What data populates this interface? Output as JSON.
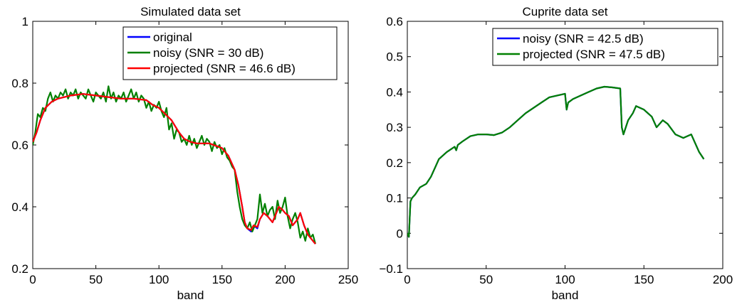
{
  "chart_data": [
    {
      "type": "line",
      "title": "Simulated data set",
      "xlabel": "band",
      "ylabel": "",
      "xlim": [
        0,
        250
      ],
      "ylim": [
        0.2,
        1.0
      ],
      "xticks": [
        0,
        50,
        100,
        150,
        200,
        250
      ],
      "xtick_labels": [
        "0",
        "50",
        "100",
        "150",
        "200",
        "250"
      ],
      "yticks": [
        0.2,
        0.4,
        0.6,
        0.8,
        1.0
      ],
      "ytick_labels": [
        "0.2",
        "0.4",
        "0.6",
        "0.8",
        "1"
      ],
      "grid": false,
      "legend_position": "top-right",
      "series": [
        {
          "name": "original",
          "color": "#0000ff",
          "x": [
            0,
            3,
            6,
            10,
            15,
            20,
            30,
            40,
            50,
            60,
            70,
            80,
            90,
            95,
            100,
            105,
            110,
            113,
            116,
            120,
            125,
            130,
            140,
            150,
            155,
            160,
            163,
            166,
            168,
            170,
            173,
            175,
            178,
            180,
            183,
            186,
            190,
            193,
            195,
            198,
            200,
            203,
            206,
            210,
            212,
            215,
            218,
            220,
            224
          ],
          "y": [
            0.61,
            0.64,
            0.68,
            0.72,
            0.74,
            0.75,
            0.76,
            0.765,
            0.76,
            0.755,
            0.75,
            0.75,
            0.745,
            0.73,
            0.72,
            0.7,
            0.68,
            0.66,
            0.64,
            0.62,
            0.61,
            0.605,
            0.605,
            0.59,
            0.565,
            0.52,
            0.47,
            0.4,
            0.35,
            0.33,
            0.32,
            0.34,
            0.33,
            0.36,
            0.38,
            0.37,
            0.35,
            0.38,
            0.4,
            0.39,
            0.38,
            0.37,
            0.34,
            0.36,
            0.38,
            0.34,
            0.31,
            0.3,
            0.28
          ]
        },
        {
          "name": "noisy (SNR = 30 dB)",
          "color": "#008000",
          "x": [
            0,
            2,
            4,
            6,
            8,
            10,
            12,
            14,
            16,
            18,
            20,
            22,
            24,
            26,
            28,
            30,
            32,
            34,
            36,
            38,
            40,
            42,
            44,
            46,
            48,
            50,
            52,
            54,
            56,
            58,
            60,
            62,
            64,
            66,
            68,
            70,
            72,
            74,
            76,
            78,
            80,
            82,
            84,
            86,
            88,
            90,
            92,
            94,
            96,
            98,
            100,
            102,
            104,
            106,
            108,
            110,
            112,
            114,
            116,
            118,
            120,
            122,
            124,
            126,
            128,
            130,
            132,
            134,
            136,
            138,
            140,
            142,
            144,
            146,
            148,
            150,
            152,
            154,
            156,
            158,
            160,
            162,
            164,
            166,
            168,
            170,
            172,
            174,
            176,
            178,
            180,
            182,
            184,
            186,
            188,
            190,
            192,
            194,
            196,
            198,
            200,
            202,
            204,
            206,
            208,
            210,
            212,
            214,
            216,
            218,
            220,
            222,
            224
          ],
          "y": [
            0.6,
            0.64,
            0.7,
            0.69,
            0.72,
            0.71,
            0.75,
            0.77,
            0.74,
            0.76,
            0.75,
            0.77,
            0.76,
            0.78,
            0.75,
            0.77,
            0.76,
            0.78,
            0.75,
            0.77,
            0.76,
            0.75,
            0.78,
            0.76,
            0.74,
            0.77,
            0.76,
            0.75,
            0.77,
            0.74,
            0.79,
            0.75,
            0.77,
            0.74,
            0.76,
            0.75,
            0.77,
            0.74,
            0.76,
            0.78,
            0.75,
            0.77,
            0.74,
            0.76,
            0.75,
            0.72,
            0.74,
            0.71,
            0.73,
            0.72,
            0.74,
            0.71,
            0.69,
            0.72,
            0.65,
            0.67,
            0.62,
            0.65,
            0.64,
            0.61,
            0.62,
            0.6,
            0.63,
            0.6,
            0.62,
            0.59,
            0.61,
            0.63,
            0.6,
            0.62,
            0.61,
            0.58,
            0.61,
            0.59,
            0.6,
            0.57,
            0.59,
            0.56,
            0.55,
            0.53,
            0.52,
            0.45,
            0.4,
            0.36,
            0.34,
            0.33,
            0.35,
            0.32,
            0.34,
            0.36,
            0.44,
            0.38,
            0.41,
            0.37,
            0.39,
            0.4,
            0.36,
            0.42,
            0.38,
            0.4,
            0.43,
            0.37,
            0.33,
            0.36,
            0.38,
            0.35,
            0.3,
            0.32,
            0.29,
            0.33,
            0.3,
            0.31,
            0.28
          ]
        },
        {
          "name": "projected (SNR = 46.6 dB)",
          "color": "#ff0000",
          "x": [
            0,
            3,
            6,
            10,
            15,
            20,
            30,
            40,
            50,
            60,
            70,
            80,
            90,
            95,
            100,
            105,
            110,
            113,
            116,
            120,
            125,
            130,
            140,
            150,
            155,
            160,
            163,
            166,
            168,
            170,
            173,
            175,
            178,
            180,
            183,
            186,
            190,
            193,
            195,
            198,
            200,
            203,
            206,
            210,
            212,
            215,
            218,
            220,
            224
          ],
          "y": [
            0.61,
            0.64,
            0.68,
            0.72,
            0.74,
            0.75,
            0.76,
            0.765,
            0.76,
            0.755,
            0.75,
            0.75,
            0.745,
            0.73,
            0.72,
            0.7,
            0.68,
            0.66,
            0.64,
            0.62,
            0.61,
            0.605,
            0.605,
            0.59,
            0.565,
            0.52,
            0.47,
            0.4,
            0.35,
            0.33,
            0.325,
            0.34,
            0.335,
            0.36,
            0.38,
            0.37,
            0.35,
            0.38,
            0.4,
            0.39,
            0.38,
            0.37,
            0.34,
            0.36,
            0.38,
            0.34,
            0.31,
            0.3,
            0.28
          ]
        }
      ]
    },
    {
      "type": "line",
      "title": "Cuprite data set",
      "xlabel": "band",
      "ylabel": "",
      "xlim": [
        0,
        200
      ],
      "ylim": [
        -0.1,
        0.6
      ],
      "xticks": [
        0,
        50,
        100,
        150,
        200
      ],
      "xtick_labels": [
        "0",
        "50",
        "100",
        "150",
        "200"
      ],
      "yticks": [
        -0.1,
        0,
        0.1,
        0.2,
        0.3,
        0.4,
        0.5,
        0.6
      ],
      "ytick_labels": [
        "−0.1",
        "0",
        "0.1",
        "0.2",
        "0.3",
        "0.4",
        "0.5",
        "0.6"
      ],
      "grid": false,
      "legend_position": "top-right",
      "series": [
        {
          "name": "noisy (SNR = 42.5 dB)",
          "color": "#0000ff",
          "x": [
            0,
            1,
            2,
            3,
            5,
            8,
            12,
            15,
            18,
            20,
            25,
            30,
            31,
            32,
            35,
            40,
            45,
            50,
            55,
            60,
            65,
            70,
            75,
            80,
            85,
            90,
            95,
            100,
            101,
            102,
            105,
            110,
            115,
            120,
            125,
            130,
            135,
            136,
            137,
            140,
            143,
            145,
            150,
            155,
            158,
            160,
            162,
            165,
            170,
            175,
            180,
            185,
            188
          ],
          "y": [
            0.0,
            -0.01,
            0.09,
            0.1,
            0.11,
            0.13,
            0.14,
            0.16,
            0.19,
            0.21,
            0.23,
            0.245,
            0.235,
            0.25,
            0.26,
            0.275,
            0.28,
            0.28,
            0.278,
            0.285,
            0.3,
            0.32,
            0.34,
            0.355,
            0.37,
            0.385,
            0.39,
            0.395,
            0.35,
            0.37,
            0.38,
            0.39,
            0.4,
            0.41,
            0.415,
            0.413,
            0.41,
            0.3,
            0.28,
            0.32,
            0.34,
            0.36,
            0.35,
            0.33,
            0.3,
            0.31,
            0.32,
            0.31,
            0.28,
            0.27,
            0.28,
            0.23,
            0.21
          ]
        },
        {
          "name": "projected (SNR = 47.5 dB)",
          "color": "#008000",
          "x": [
            0,
            1,
            2,
            3,
            5,
            8,
            12,
            15,
            18,
            20,
            25,
            30,
            31,
            32,
            35,
            40,
            45,
            50,
            55,
            60,
            65,
            70,
            75,
            80,
            85,
            90,
            95,
            100,
            101,
            102,
            105,
            110,
            115,
            120,
            125,
            130,
            135,
            136,
            137,
            140,
            143,
            145,
            150,
            155,
            158,
            160,
            162,
            165,
            170,
            175,
            180,
            185,
            188
          ],
          "y": [
            0.0,
            -0.01,
            0.09,
            0.1,
            0.11,
            0.13,
            0.14,
            0.16,
            0.19,
            0.21,
            0.23,
            0.245,
            0.235,
            0.25,
            0.26,
            0.275,
            0.28,
            0.28,
            0.278,
            0.285,
            0.3,
            0.32,
            0.34,
            0.355,
            0.37,
            0.385,
            0.39,
            0.395,
            0.35,
            0.37,
            0.38,
            0.39,
            0.4,
            0.41,
            0.415,
            0.413,
            0.41,
            0.3,
            0.28,
            0.32,
            0.34,
            0.36,
            0.35,
            0.33,
            0.3,
            0.31,
            0.32,
            0.31,
            0.28,
            0.27,
            0.28,
            0.23,
            0.21
          ]
        }
      ]
    }
  ]
}
